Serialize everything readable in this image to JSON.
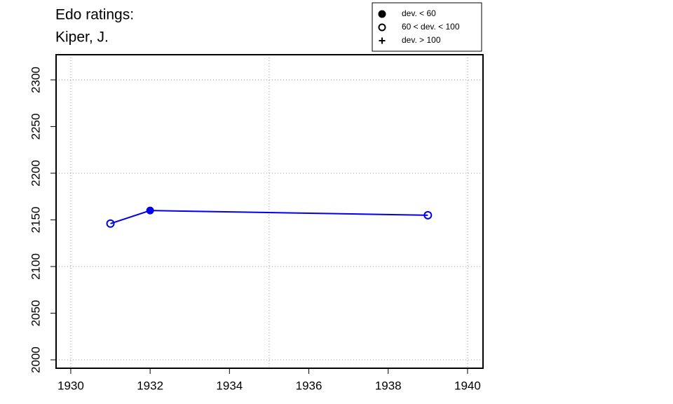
{
  "chart_data": {
    "type": "line",
    "title": [
      "Edo ratings:",
      "Kiper, J."
    ],
    "x": [
      1931,
      1932,
      1939
    ],
    "series": [
      {
        "color": "#0000ee",
        "values": [
          2146,
          2160,
          2155
        ],
        "marker": [
          "open",
          "filled",
          "open"
        ]
      }
    ],
    "xlim": [
      1929.63,
      1940.39
    ],
    "ylim": [
      1991,
      2327
    ],
    "xticks": [
      1930,
      1932,
      1934,
      1936,
      1938,
      1940
    ],
    "yticks": [
      2000,
      2050,
      2100,
      2150,
      2200,
      2250,
      2300
    ],
    "xgrid": [
      1930,
      1935,
      1940
    ],
    "ygrid": [
      2000,
      2100,
      2200,
      2300
    ],
    "legend": {
      "position": "top-right",
      "entries": [
        {
          "label": "dev. < 60",
          "symbol": "filled"
        },
        {
          "label": "60 < dev. < 100",
          "symbol": "open"
        },
        {
          "label": "dev. > 100",
          "symbol": "plus"
        }
      ]
    }
  }
}
